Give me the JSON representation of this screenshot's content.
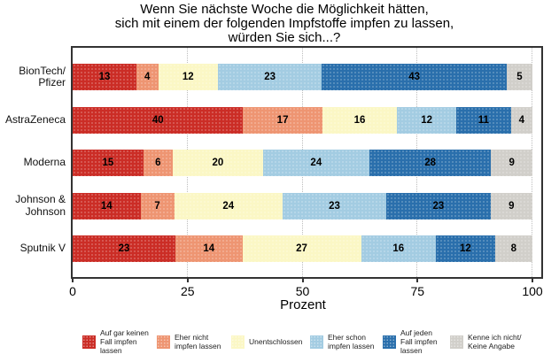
{
  "chart_data": {
    "type": "bar",
    "variant": "horizontal-stacked",
    "title": "Wenn Sie nächste Woche die Möglichkeit hätten,\nsich mit einem der folgenden Impfstoffe impfen zu lassen,\nwürden Sie sich...?",
    "xlabel": "Prozent",
    "xlim": [
      0,
      100
    ],
    "x_ticks": [
      0,
      25,
      50,
      75,
      100
    ],
    "grid": "dotted-vertical",
    "legend_position": "bottom",
    "categories": [
      "BionTech/\nPfizer",
      "AstraZeneca",
      "Moderna",
      "Johnson &\nJohnson",
      "Sputnik V"
    ],
    "series": [
      {
        "name": "Auf gar keinen\nFall impfen\nlassen",
        "color": "#cb2d26",
        "values": [
          13,
          40,
          15,
          14,
          23
        ]
      },
      {
        "name": "Eher nicht\nimpfen lassen",
        "color": "#ee9572",
        "values": [
          4,
          17,
          6,
          7,
          14
        ]
      },
      {
        "name": "Unentschlossen",
        "color": "#fbf7c5",
        "values": [
          12,
          16,
          20,
          24,
          27
        ]
      },
      {
        "name": "Eher schon\nimpfen lassen",
        "color": "#a3cce2",
        "values": [
          23,
          12,
          24,
          23,
          16
        ]
      },
      {
        "name": "Auf jeden\nFall impfen\nlassen",
        "color": "#2a6fac",
        "values": [
          43,
          11,
          28,
          23,
          12
        ]
      },
      {
        "name": "Kenne ich nicht/\nKeine Angabe",
        "color": "#d1cfca",
        "values": [
          5,
          4,
          9,
          9,
          8
        ]
      }
    ]
  }
}
